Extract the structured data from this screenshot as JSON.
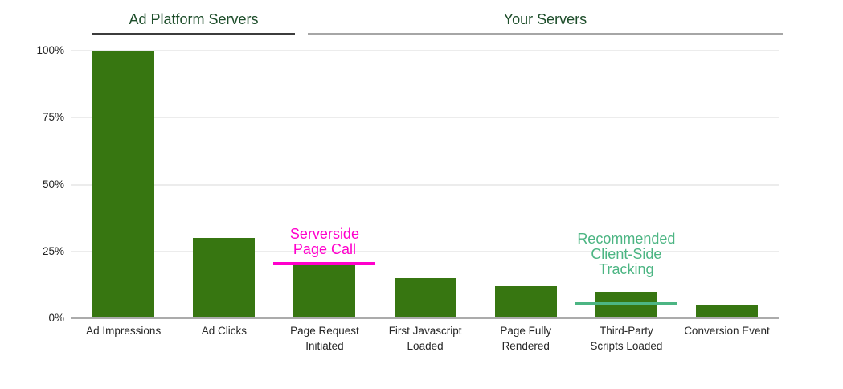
{
  "sections": [
    {
      "label": "Ad Platform Servers",
      "underline_color": "#3c3c3c"
    },
    {
      "label": "Your Servers",
      "underline_color": "#a6a6a6"
    }
  ],
  "colors": {
    "bar": "#377611",
    "section_title": "#1d4d2a",
    "axis_label": "#222222",
    "gridline": "#ececec",
    "baseline": "#ababab",
    "serverside_annotation": "#ff00cc",
    "client_side_annotation": "#4cb583"
  },
  "annotations": [
    {
      "name": "serverside-page-call",
      "text": "Serverside\nPage Call",
      "color": "#ff00cc",
      "level_pct": 20.5,
      "over_category": "Page Request Initiated"
    },
    {
      "name": "recommended-client-side-tracking",
      "text": "Recommended\nClient-Side\nTracking",
      "color": "#4cb583",
      "level_pct": 5.5,
      "over_category": "Third-Party Scripts Loaded"
    }
  ],
  "chart_data": {
    "type": "bar",
    "categories": [
      "Ad Impressions",
      "Ad Clicks",
      "Page Request\nInitiated",
      "First Javascript\nLoaded",
      "Page Fully\nRendered",
      "Third-Party\nScripts Loaded",
      "Conversion Event"
    ],
    "values": [
      100,
      30,
      20,
      15,
      12,
      10,
      5
    ],
    "yticks": [
      0,
      25,
      50,
      75,
      100
    ],
    "ytick_labels": [
      "0%",
      "25%",
      "50%",
      "75%",
      "100%"
    ],
    "ylim": [
      0,
      100
    ],
    "bar_color": "#377611",
    "grid": true,
    "title": "",
    "xlabel": "",
    "ylabel": "",
    "legend": null
  }
}
